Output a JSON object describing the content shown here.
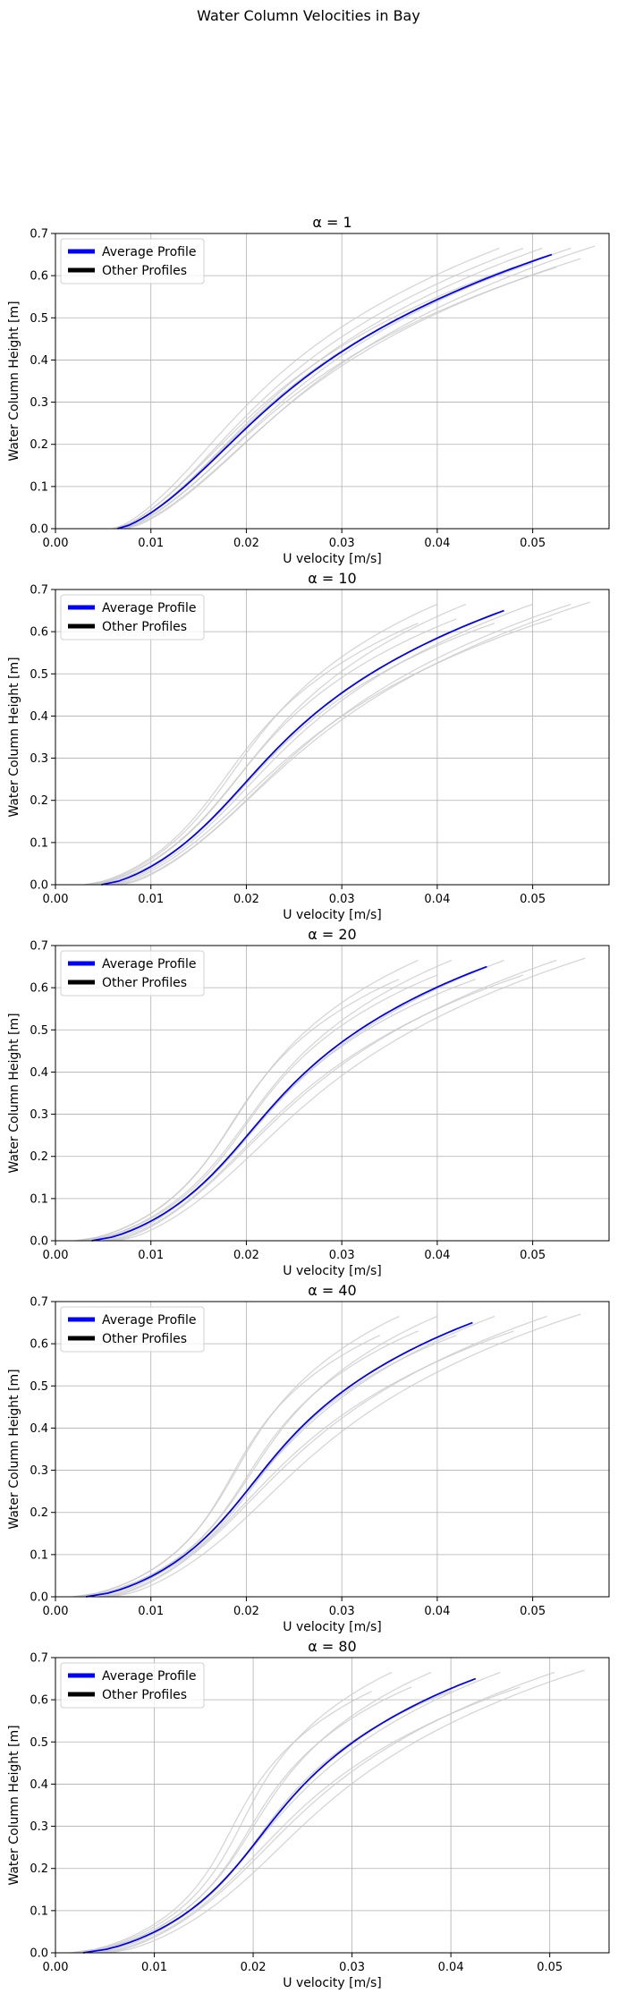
{
  "figure": {
    "title": "Water Column Velocities in Bay",
    "colors": {
      "average": "#0000ff",
      "others": "#c8c8c8",
      "legend_others": "#000000"
    }
  },
  "chart_data": [
    {
      "type": "line",
      "title": "α = 1",
      "xlabel": "U velocity [m/s]",
      "ylabel": "Water Column Height [m]",
      "xlim": [
        0,
        0.058
      ],
      "ylim": [
        0,
        0.7
      ],
      "xticks": [
        "0.00",
        "0.01",
        "0.02",
        "0.03",
        "0.04",
        "0.05"
      ],
      "yticks": [
        "0.0",
        "0.1",
        "0.2",
        "0.3",
        "0.4",
        "0.5",
        "0.6",
        "0.7"
      ],
      "grid": true,
      "legend": {
        "position": "top-left",
        "entries": [
          "Average Profile",
          "Other Profiles"
        ]
      },
      "average": {
        "name": "Average Profile",
        "u_bottom": 0.0065,
        "u_top": 0.052,
        "top": 0.65,
        "shape": 0.5
      },
      "others": [
        {
          "u_bottom": 0.006,
          "u_top": 0.0465,
          "top": 0.665,
          "shape": 0.5
        },
        {
          "u_bottom": 0.0062,
          "u_top": 0.048,
          "top": 0.62,
          "shape": 0.5
        },
        {
          "u_bottom": 0.0063,
          "u_top": 0.049,
          "top": 0.665,
          "shape": 0.5
        },
        {
          "u_bottom": 0.0065,
          "u_top": 0.05,
          "top": 0.63,
          "shape": 0.5
        },
        {
          "u_bottom": 0.0066,
          "u_top": 0.051,
          "top": 0.665,
          "shape": 0.5
        },
        {
          "u_bottom": 0.0068,
          "u_top": 0.0525,
          "top": 0.62,
          "shape": 0.5
        },
        {
          "u_bottom": 0.007,
          "u_top": 0.054,
          "top": 0.665,
          "shape": 0.5
        },
        {
          "u_bottom": 0.0072,
          "u_top": 0.055,
          "top": 0.64,
          "shape": 0.5
        },
        {
          "u_bottom": 0.0074,
          "u_top": 0.0565,
          "top": 0.67,
          "shape": 0.5
        }
      ]
    },
    {
      "type": "line",
      "title": "α = 10",
      "xlabel": "U velocity [m/s]",
      "ylabel": "Water Column Height [m]",
      "xlim": [
        0,
        0.058
      ],
      "ylim": [
        0,
        0.7
      ],
      "xticks": [
        "0.00",
        "0.01",
        "0.02",
        "0.03",
        "0.04",
        "0.05"
      ],
      "yticks": [
        "0.0",
        "0.1",
        "0.2",
        "0.3",
        "0.4",
        "0.5",
        "0.6",
        "0.7"
      ],
      "grid": true,
      "legend": {
        "position": "top-left",
        "entries": [
          "Average Profile",
          "Other Profiles"
        ]
      },
      "average": {
        "name": "Average Profile",
        "u_bottom": 0.0048,
        "u_top": 0.047,
        "top": 0.65,
        "shape": 0.9
      },
      "others": [
        {
          "u_bottom": 0.003,
          "u_top": 0.038,
          "top": 0.62,
          "shape": 1.2
        },
        {
          "u_bottom": 0.0032,
          "u_top": 0.04,
          "top": 0.665,
          "shape": 1.2
        },
        {
          "u_bottom": 0.0035,
          "u_top": 0.042,
          "top": 0.63,
          "shape": 1.1
        },
        {
          "u_bottom": 0.0037,
          "u_top": 0.043,
          "top": 0.665,
          "shape": 1.1
        },
        {
          "u_bottom": 0.004,
          "u_top": 0.046,
          "top": 0.62,
          "shape": 1.0
        },
        {
          "u_bottom": 0.0055,
          "u_top": 0.05,
          "top": 0.665,
          "shape": 0.8
        },
        {
          "u_bottom": 0.006,
          "u_top": 0.052,
          "top": 0.63,
          "shape": 0.7
        },
        {
          "u_bottom": 0.0065,
          "u_top": 0.054,
          "top": 0.665,
          "shape": 0.7
        },
        {
          "u_bottom": 0.007,
          "u_top": 0.056,
          "top": 0.67,
          "shape": 0.6
        }
      ]
    },
    {
      "type": "line",
      "title": "α = 20",
      "xlabel": "U velocity [m/s]",
      "ylabel": "Water Column Height [m]",
      "xlim": [
        0,
        0.058
      ],
      "ylim": [
        0,
        0.7
      ],
      "xticks": [
        "0.00",
        "0.01",
        "0.02",
        "0.03",
        "0.04",
        "0.05"
      ],
      "yticks": [
        "0.0",
        "0.1",
        "0.2",
        "0.3",
        "0.4",
        "0.5",
        "0.6",
        "0.7"
      ],
      "grid": true,
      "legend": {
        "position": "top-left",
        "entries": [
          "Average Profile",
          "Other Profiles"
        ]
      },
      "average": {
        "name": "Average Profile",
        "u_bottom": 0.0038,
        "u_top": 0.0452,
        "top": 0.65,
        "shape": 1.1
      },
      "others": [
        {
          "u_bottom": 0.002,
          "u_top": 0.036,
          "top": 0.62,
          "shape": 1.5
        },
        {
          "u_bottom": 0.0023,
          "u_top": 0.038,
          "top": 0.665,
          "shape": 1.4
        },
        {
          "u_bottom": 0.0026,
          "u_top": 0.04,
          "top": 0.63,
          "shape": 1.4
        },
        {
          "u_bottom": 0.0028,
          "u_top": 0.0415,
          "top": 0.665,
          "shape": 1.3
        },
        {
          "u_bottom": 0.0032,
          "u_top": 0.044,
          "top": 0.62,
          "shape": 1.2
        },
        {
          "u_bottom": 0.005,
          "u_top": 0.047,
          "top": 0.665,
          "shape": 0.9
        },
        {
          "u_bottom": 0.0055,
          "u_top": 0.049,
          "top": 0.63,
          "shape": 0.8
        },
        {
          "u_bottom": 0.006,
          "u_top": 0.0525,
          "top": 0.665,
          "shape": 0.7
        },
        {
          "u_bottom": 0.0065,
          "u_top": 0.0555,
          "top": 0.67,
          "shape": 0.7
        }
      ]
    },
    {
      "type": "line",
      "title": "α = 40",
      "xlabel": "U velocity [m/s]",
      "ylabel": "Water Column Height [m]",
      "xlim": [
        0,
        0.058
      ],
      "ylim": [
        0,
        0.7
      ],
      "xticks": [
        "0.00",
        "0.01",
        "0.02",
        "0.03",
        "0.04",
        "0.05"
      ],
      "yticks": [
        "0.0",
        "0.1",
        "0.2",
        "0.3",
        "0.4",
        "0.5",
        "0.6",
        "0.7"
      ],
      "grid": true,
      "legend": {
        "position": "top-left",
        "entries": [
          "Average Profile",
          "Other Profiles"
        ]
      },
      "average": {
        "name": "Average Profile",
        "u_bottom": 0.0032,
        "u_top": 0.0437,
        "top": 0.65,
        "shape": 1.25
      },
      "others": [
        {
          "u_bottom": 0.0018,
          "u_top": 0.034,
          "top": 0.62,
          "shape": 1.7
        },
        {
          "u_bottom": 0.002,
          "u_top": 0.036,
          "top": 0.665,
          "shape": 1.6
        },
        {
          "u_bottom": 0.0022,
          "u_top": 0.038,
          "top": 0.63,
          "shape": 1.6
        },
        {
          "u_bottom": 0.0025,
          "u_top": 0.04,
          "top": 0.665,
          "shape": 1.5
        },
        {
          "u_bottom": 0.0028,
          "u_top": 0.042,
          "top": 0.62,
          "shape": 1.4
        },
        {
          "u_bottom": 0.0045,
          "u_top": 0.046,
          "top": 0.665,
          "shape": 1.0
        },
        {
          "u_bottom": 0.005,
          "u_top": 0.048,
          "top": 0.63,
          "shape": 0.9
        },
        {
          "u_bottom": 0.0055,
          "u_top": 0.0515,
          "top": 0.665,
          "shape": 0.8
        },
        {
          "u_bottom": 0.006,
          "u_top": 0.055,
          "top": 0.67,
          "shape": 0.8
        }
      ]
    },
    {
      "type": "line",
      "title": "α = 80",
      "xlabel": "U velocity [m/s]",
      "ylabel": "Water Column Height [m]",
      "xlim": [
        0,
        0.056
      ],
      "ylim": [
        0,
        0.7
      ],
      "xticks": [
        "0.00",
        "0.01",
        "0.02",
        "0.03",
        "0.04",
        "0.05"
      ],
      "yticks": [
        "0.0",
        "0.1",
        "0.2",
        "0.3",
        "0.4",
        "0.5",
        "0.6",
        "0.7"
      ],
      "grid": true,
      "legend": {
        "position": "top-left",
        "entries": [
          "Average Profile",
          "Other Profiles"
        ]
      },
      "average": {
        "name": "Average Profile",
        "u_bottom": 0.0028,
        "u_top": 0.0425,
        "top": 0.65,
        "shape": 1.35
      },
      "others": [
        {
          "u_bottom": 0.0015,
          "u_top": 0.032,
          "top": 0.62,
          "shape": 1.8
        },
        {
          "u_bottom": 0.0018,
          "u_top": 0.034,
          "top": 0.665,
          "shape": 1.8
        },
        {
          "u_bottom": 0.002,
          "u_top": 0.036,
          "top": 0.63,
          "shape": 1.7
        },
        {
          "u_bottom": 0.0022,
          "u_top": 0.038,
          "top": 0.665,
          "shape": 1.6
        },
        {
          "u_bottom": 0.0025,
          "u_top": 0.04,
          "top": 0.62,
          "shape": 1.5
        },
        {
          "u_bottom": 0.004,
          "u_top": 0.045,
          "top": 0.665,
          "shape": 1.1
        },
        {
          "u_bottom": 0.0045,
          "u_top": 0.047,
          "top": 0.63,
          "shape": 1.0
        },
        {
          "u_bottom": 0.005,
          "u_top": 0.0505,
          "top": 0.665,
          "shape": 0.9
        },
        {
          "u_bottom": 0.0055,
          "u_top": 0.0535,
          "top": 0.67,
          "shape": 0.9
        }
      ]
    }
  ]
}
